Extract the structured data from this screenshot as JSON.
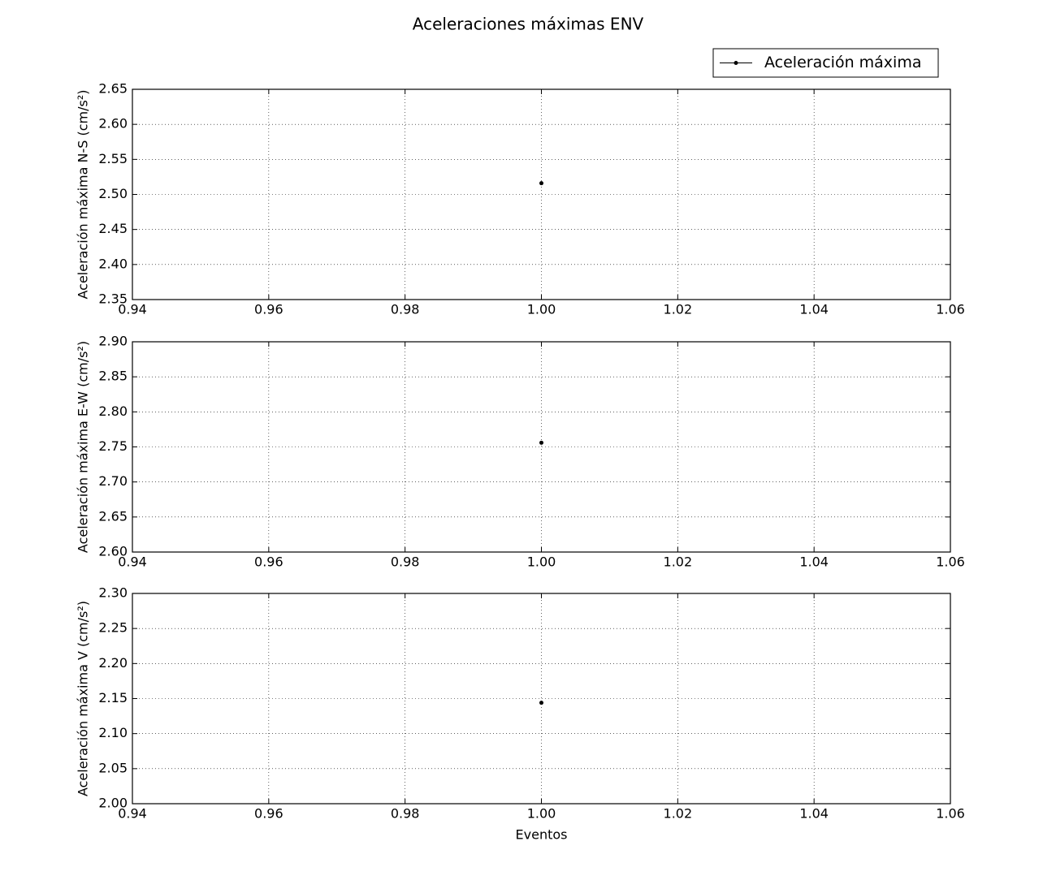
{
  "title": "Aceleraciones máximas ENV",
  "chart_data": [
    {
      "type": "line",
      "ylabel": "Aceleración máxima N-S (cm/s²)",
      "x": [
        1
      ],
      "series": [
        {
          "name": "Aceleración máxima",
          "color": "#000000",
          "values": [
            2.516
          ]
        }
      ],
      "xlim": [
        0.94,
        1.06
      ],
      "xticks": [
        0.94,
        0.96,
        0.98,
        {
          "value": 1,
          "label": "1.00"
        },
        1.02,
        1.04,
        1.06
      ],
      "ylim": [
        2.35,
        2.65
      ],
      "yticks": [
        2.35,
        {
          "value": 2.4,
          "label": "2.40"
        },
        2.45,
        {
          "value": 2.5,
          "label": "2.50"
        },
        2.55,
        {
          "value": 2.6,
          "label": "2.60"
        },
        2.65
      ],
      "grid": true,
      "legend": "upper right"
    },
    {
      "type": "line",
      "ylabel": "Aceleración máxima E-W (cm/s²)",
      "x": [
        1
      ],
      "series": [
        {
          "name": "Aceleración máxima",
          "color": "#000000",
          "values": [
            2.756
          ]
        }
      ],
      "xlim": [
        0.94,
        1.06
      ],
      "xticks": [
        0.94,
        0.96,
        0.98,
        {
          "value": 1,
          "label": "1.00"
        },
        1.02,
        1.04,
        1.06
      ],
      "ylim": [
        2.6,
        2.9
      ],
      "yticks": [
        {
          "value": 2.6,
          "label": "2.60"
        },
        2.65,
        {
          "value": 2.7,
          "label": "2.70"
        },
        2.75,
        {
          "value": 2.8,
          "label": "2.80"
        },
        2.85,
        {
          "value": 2.9,
          "label": "2.90"
        }
      ],
      "grid": true
    },
    {
      "type": "line",
      "ylabel": "Aceleración máxima V (cm/s²)",
      "xlabel": "Eventos",
      "x": [
        1
      ],
      "series": [
        {
          "name": "Aceleración máxima",
          "color": "#000000",
          "values": [
            2.144
          ]
        }
      ],
      "xlim": [
        0.94,
        1.06
      ],
      "xticks": [
        0.94,
        0.96,
        0.98,
        {
          "value": 1,
          "label": "1.00"
        },
        1.02,
        1.04,
        1.06
      ],
      "ylim": [
        2,
        2.3
      ],
      "yticks": [
        {
          "value": 2,
          "label": "2.00"
        },
        2.05,
        {
          "value": 2.1,
          "label": "2.10"
        },
        2.15,
        {
          "value": 2.2,
          "label": "2.20"
        },
        2.25,
        {
          "value": 2.3,
          "label": "2.30"
        }
      ],
      "grid": true
    }
  ]
}
